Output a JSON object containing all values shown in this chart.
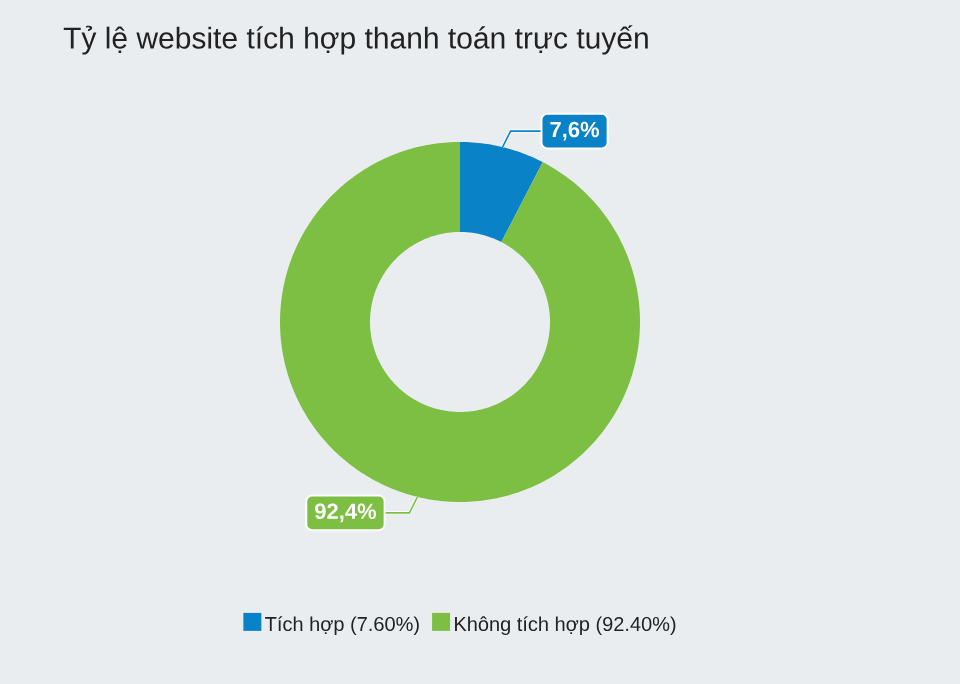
{
  "chart_data": {
    "type": "donut",
    "title": "Tỷ lệ website tích hợp thanh toán trực tuyến",
    "categories": [
      "Tích hợp (7.60%)",
      "Không tích hợp (92.40%)"
    ],
    "values": [
      7.6,
      92.4
    ],
    "colors": [
      "#0a82c8",
      "#7dbf42"
    ],
    "value_labels": [
      "7,6%",
      "92,4%"
    ],
    "legend": "bottom"
  }
}
